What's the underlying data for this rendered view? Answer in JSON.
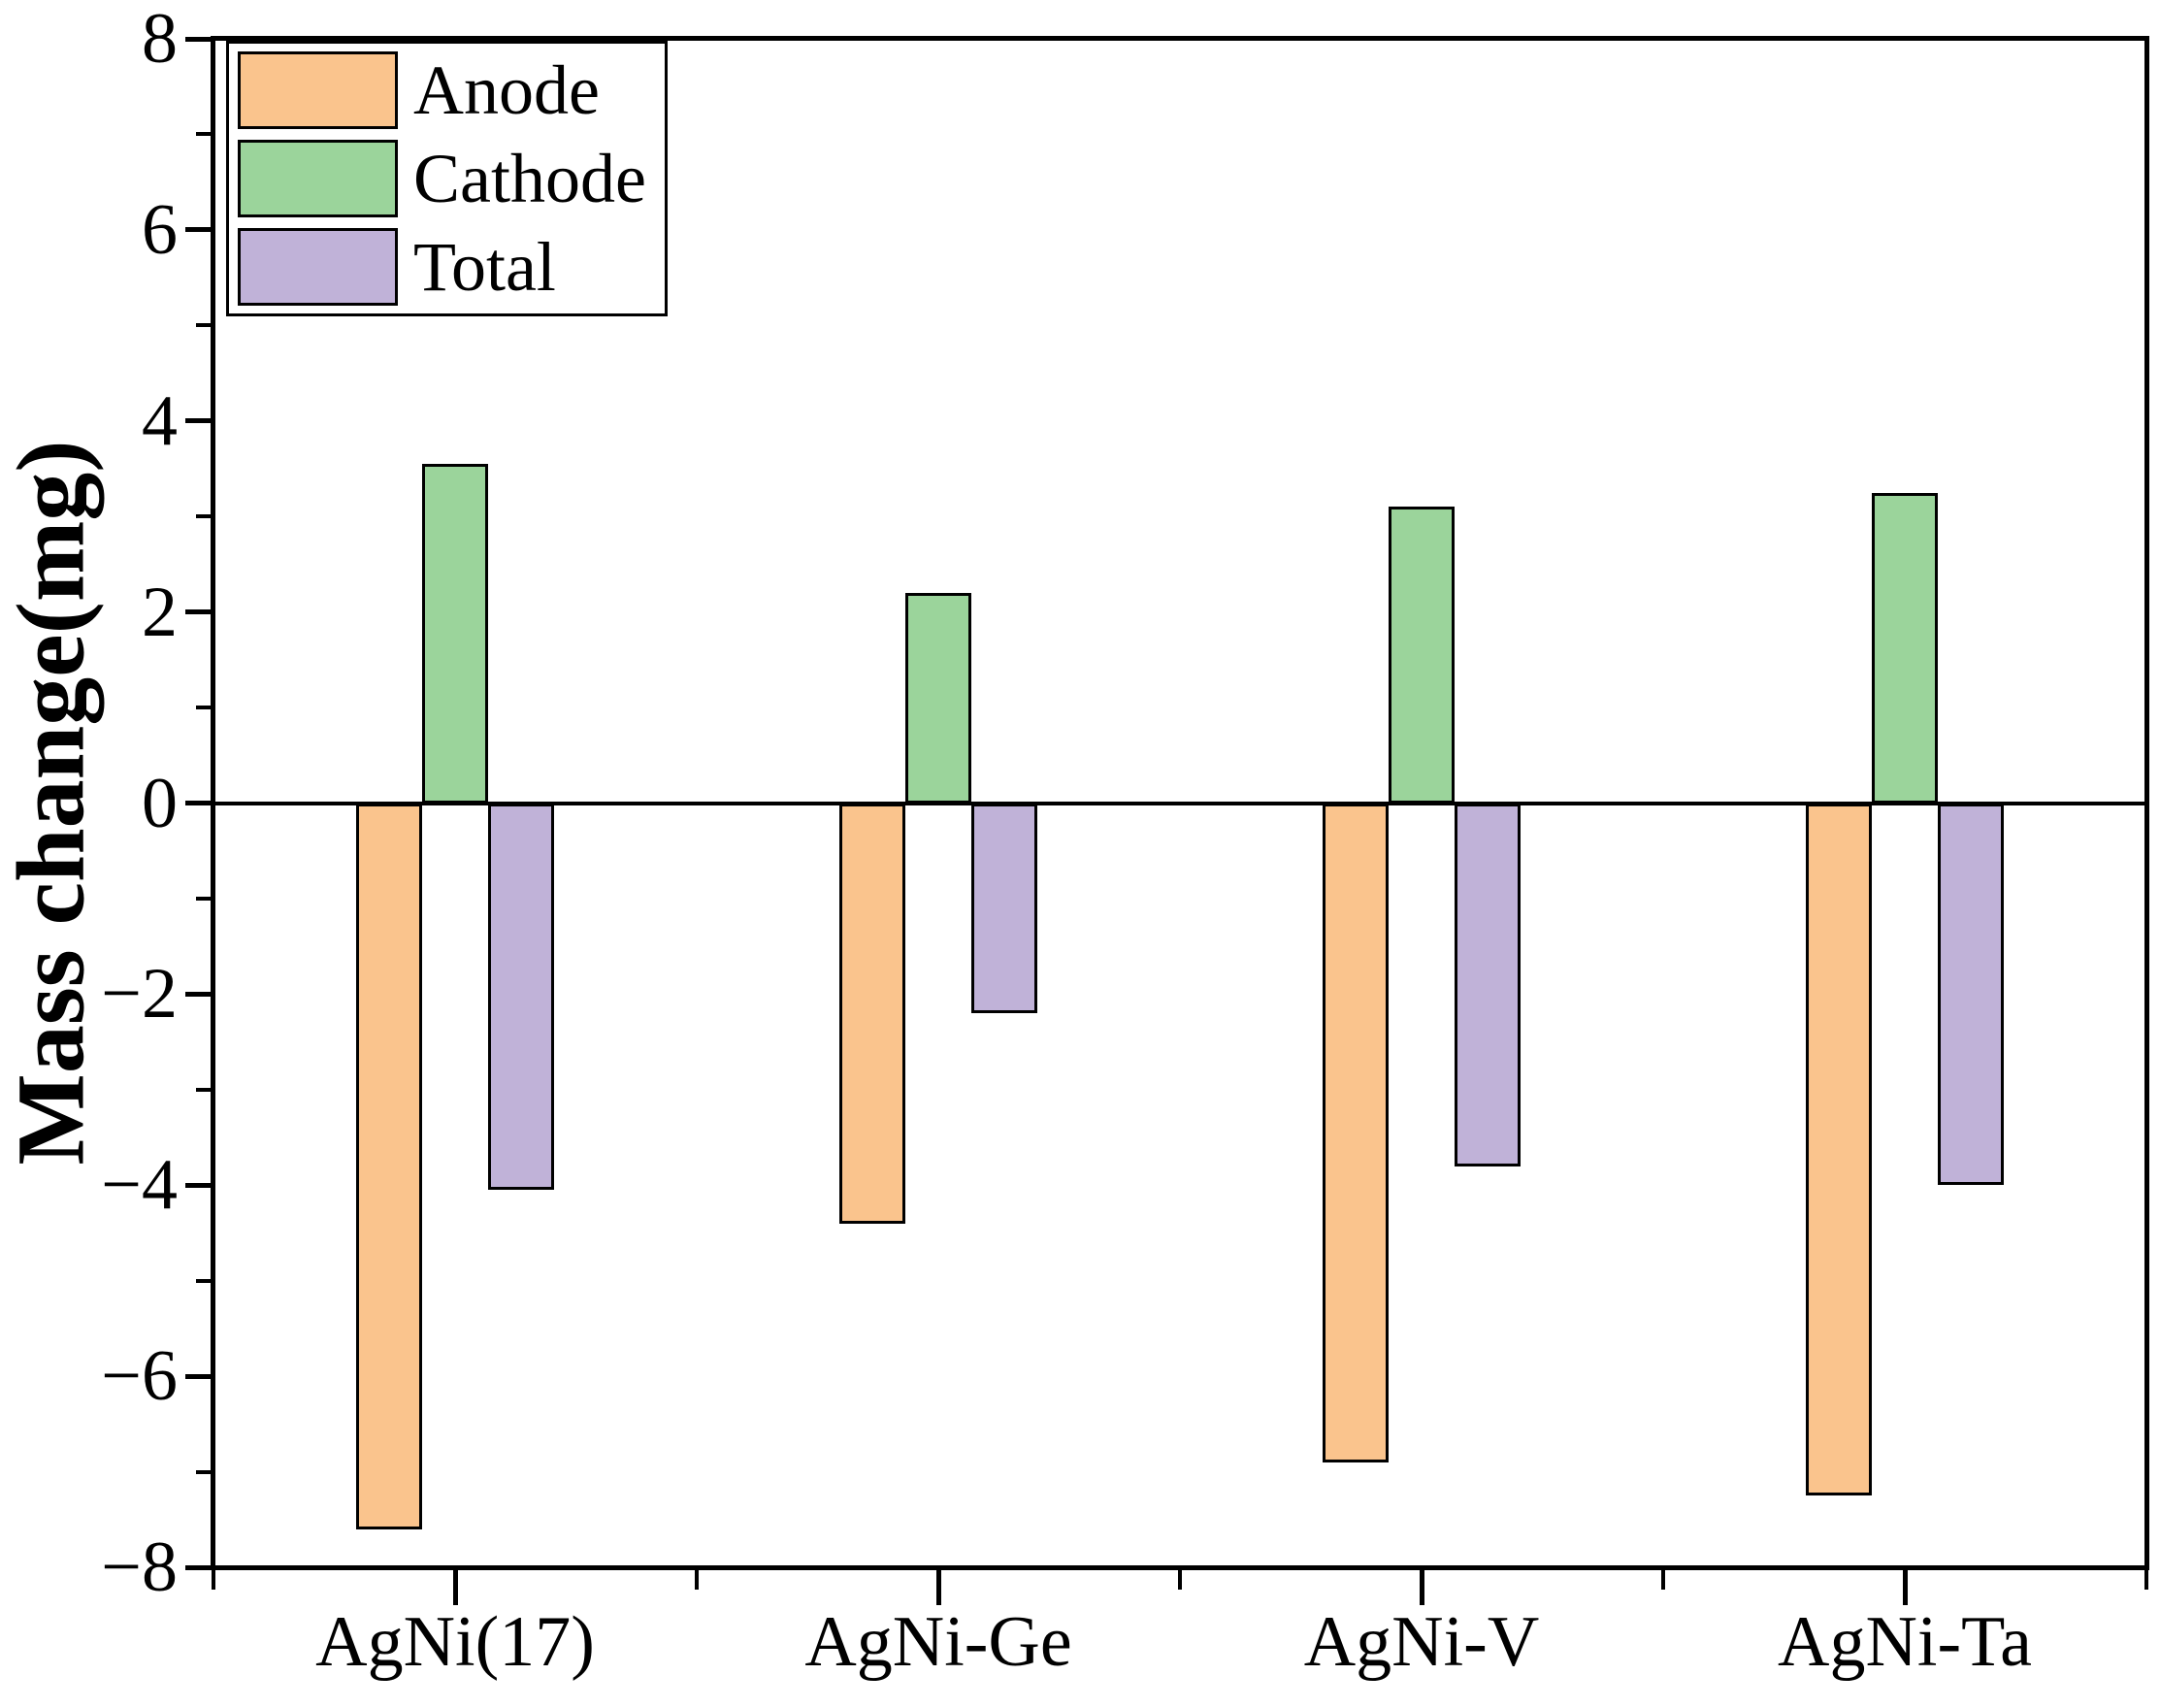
{
  "chart_data": {
    "type": "bar",
    "title": "",
    "xlabel": "",
    "ylabel": "Mass change(mg)",
    "categories": [
      "AgNi(17)",
      "AgNi-Ge",
      "AgNi-V",
      "AgNi-Ta"
    ],
    "series": [
      {
        "name": "Anode",
        "color": "#FAC48D",
        "values": [
          -7.6,
          -4.4,
          -6.9,
          -7.25
        ]
      },
      {
        "name": "Cathode",
        "color": "#9BD49B",
        "values": [
          3.55,
          2.2,
          3.1,
          3.25
        ]
      },
      {
        "name": "Total",
        "color": "#C0B2D8",
        "values": [
          -4.05,
          -2.2,
          -3.8,
          -4.0
        ]
      }
    ],
    "ylim": [
      -8,
      8
    ],
    "y_major_ticks": [
      8,
      6,
      4,
      2,
      0,
      -2,
      -4,
      -6,
      -8
    ],
    "y_tick_labels": [
      "8",
      "6",
      "4",
      "2",
      "0",
      "−2",
      "−4",
      "−6",
      "−8"
    ],
    "y_minor_ticks": [
      7,
      5,
      3,
      1,
      -1,
      -3,
      -5,
      -7
    ],
    "bar_edge_color": "#000000",
    "axis_color": "#000000",
    "legend_position": "top-left",
    "grid": "off"
  }
}
